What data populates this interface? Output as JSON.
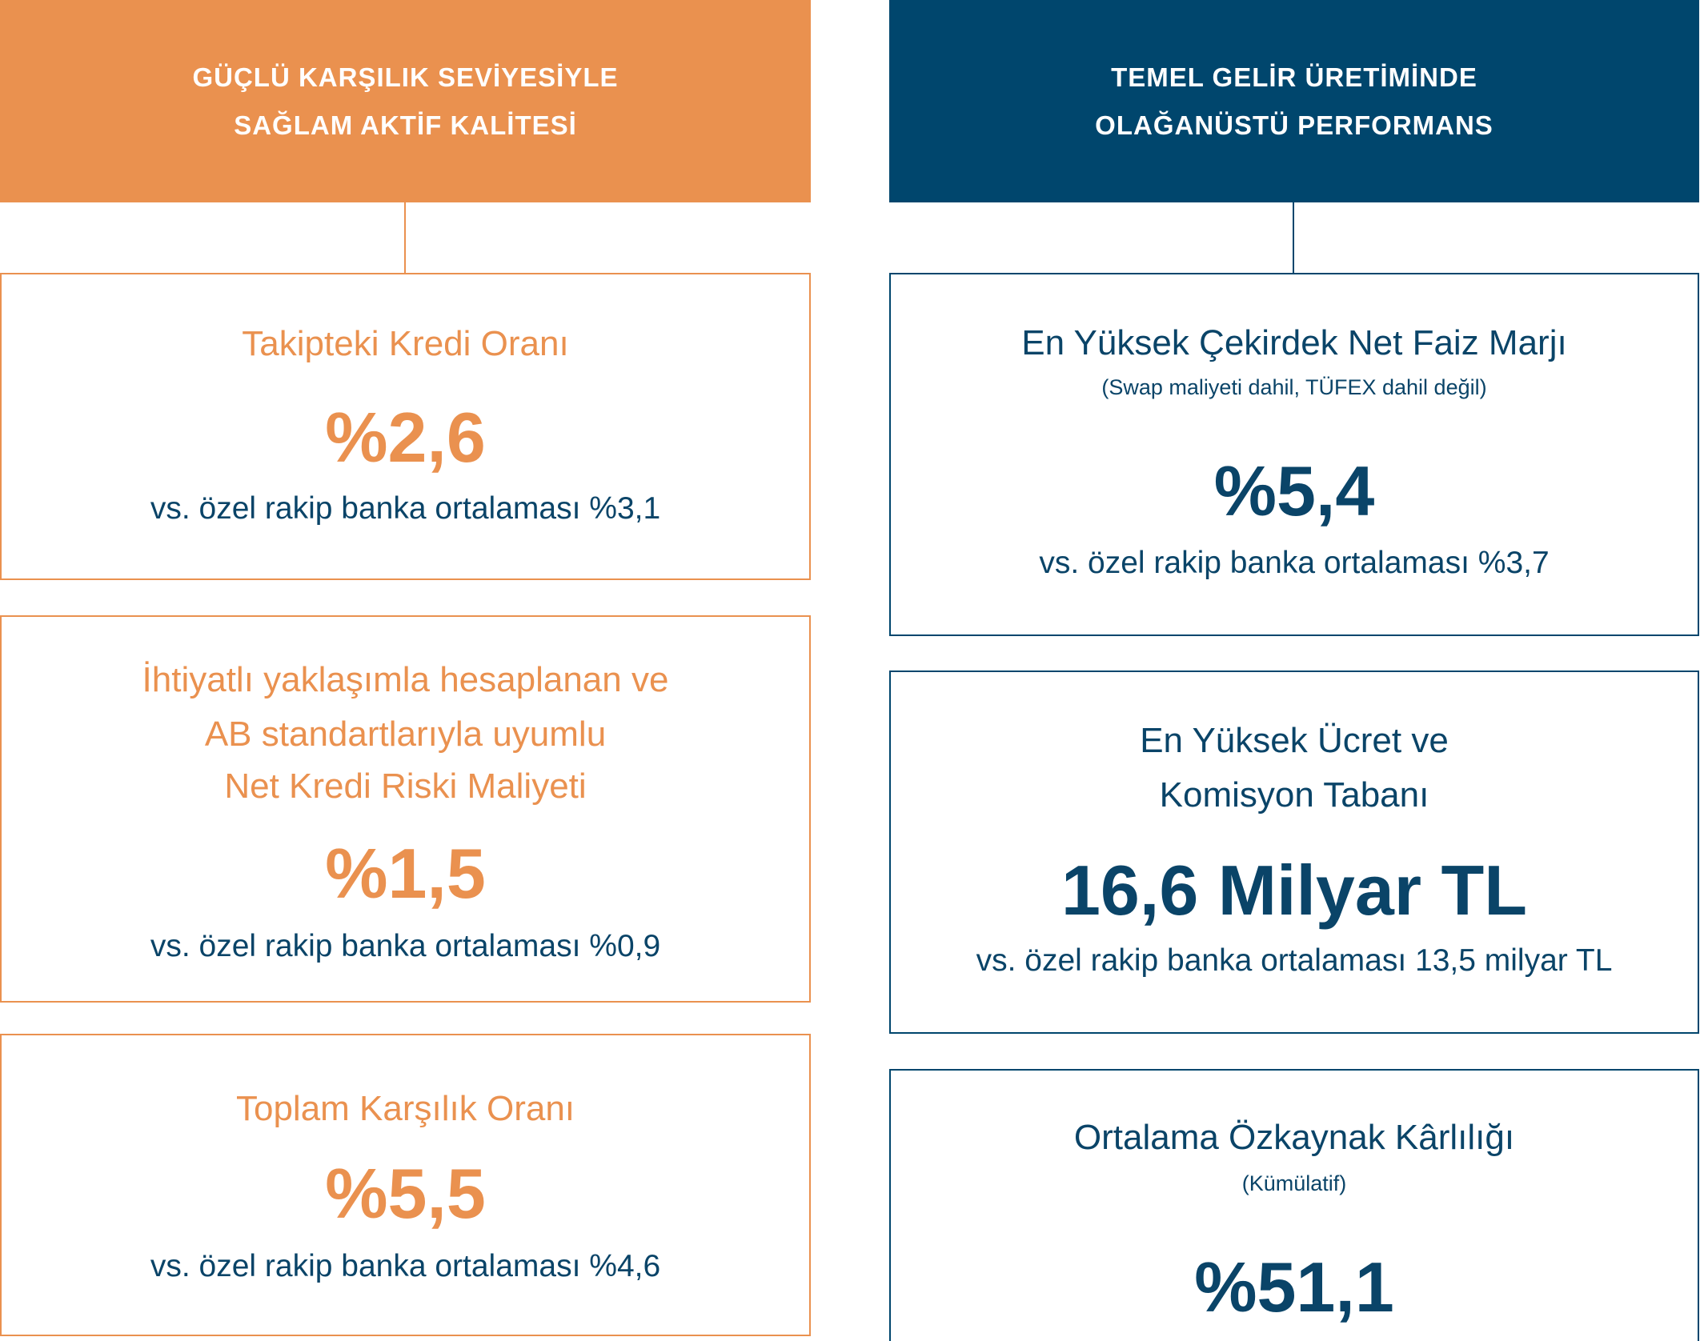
{
  "colors": {
    "orange": "#EA914F",
    "navy": "#00466D",
    "navy_text": "#0A4468"
  },
  "left_panel": {
    "header": {
      "lines": [
        "GÜÇLÜ KARŞILIK SEVİYESİYLE",
        "SAĞLAM AKTİF KALİTESİ"
      ]
    },
    "cards": [
      {
        "title_lines": [
          "Takipteki Kredi Oranı"
        ],
        "value": "%2,6",
        "comparison": "vs. özel rakip banka ortalaması %3,1"
      },
      {
        "title_lines": [
          "İhtiyatlı yaklaşımla hesaplanan ve",
          "AB standartlarıyla uyumlu",
          "Net Kredi Riski Maliyeti"
        ],
        "value": "%1,5",
        "comparison": "vs. özel rakip banka ortalaması %0,9"
      },
      {
        "title_lines": [
          "Toplam Karşılık Oranı"
        ],
        "value": "%5,5",
        "comparison": "vs. özel rakip banka ortalaması %4,6"
      }
    ]
  },
  "right_panel": {
    "header": {
      "lines": [
        "TEMEL GELİR ÜRETİMİNDE",
        "OLAĞANÜSTÜ PERFORMANS"
      ]
    },
    "cards": [
      {
        "title_lines": [
          "En Yüksek Çekirdek Net Faiz Marjı"
        ],
        "note": "(Swap maliyeti dahil, TÜFEX dahil değil)",
        "value": "%5,4",
        "comparison": "vs. özel rakip banka ortalaması %3,7"
      },
      {
        "title_lines": [
          "En Yüksek Ücret ve",
          "Komisyon Tabanı"
        ],
        "value": "16,6 Milyar TL",
        "comparison": "vs. özel rakip banka ortalaması 13,5 milyar TL"
      },
      {
        "title_lines": [
          "Ortalama Özkaynak Kârlılığı"
        ],
        "note": "(Kümülatif)",
        "value": "%51,1"
      }
    ]
  }
}
